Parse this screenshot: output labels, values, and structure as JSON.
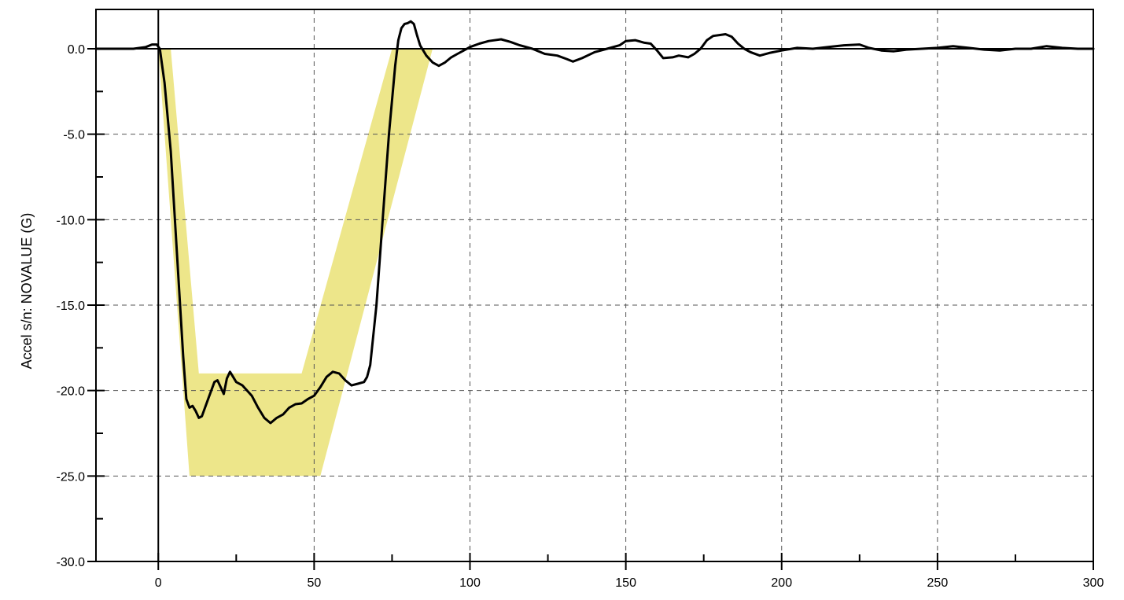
{
  "chart_data": {
    "type": "line",
    "title": "",
    "xlabel": "",
    "ylabel": "Accel s/n: NOVALUE (G)",
    "xlim": [
      -20,
      300
    ],
    "ylim": [
      -30,
      2.3
    ],
    "x_ticks": [
      0,
      50,
      100,
      150,
      200,
      250,
      300
    ],
    "x_tick_labels": [
      "0",
      "50",
      "100",
      "150",
      "200",
      "250",
      "300"
    ],
    "x_minor_ticks": [
      25,
      75,
      125,
      175,
      225,
      275
    ],
    "y_ticks": [
      0,
      -5,
      -10,
      -15,
      -20,
      -25,
      -30
    ],
    "y_tick_labels": [
      "0.0",
      "-5.0",
      "-10.0",
      "-15.0",
      "-20.0",
      "-25.0",
      "-30.0"
    ],
    "y_minor_ticks": [
      -2.5,
      -7.5,
      -12.5,
      -17.5,
      -22.5,
      -27.5
    ],
    "grid": true,
    "legend": "none",
    "corridor": {
      "color": "#EDE68A",
      "polygon": [
        [
          0,
          0
        ],
        [
          4,
          0
        ],
        [
          13,
          -19
        ],
        [
          46,
          -19
        ],
        [
          75,
          0
        ],
        [
          88,
          0
        ],
        [
          52,
          -25
        ],
        [
          10,
          -25
        ]
      ]
    },
    "series": [
      {
        "color": "#000000",
        "points": [
          [
            -20,
            0
          ],
          [
            -8,
            0
          ],
          [
            -4,
            0.1
          ],
          [
            -2,
            0.25
          ],
          [
            -0.5,
            0.25
          ],
          [
            0.5,
            0
          ],
          [
            2,
            -2
          ],
          [
            4,
            -6
          ],
          [
            6,
            -12
          ],
          [
            8,
            -18
          ],
          [
            9,
            -20.5
          ],
          [
            10,
            -21
          ],
          [
            11,
            -20.9
          ],
          [
            12,
            -21.2
          ],
          [
            13,
            -21.6
          ],
          [
            14,
            -21.5
          ],
          [
            16,
            -20.5
          ],
          [
            18,
            -19.5
          ],
          [
            19,
            -19.4
          ],
          [
            20,
            -19.8
          ],
          [
            21,
            -20.2
          ],
          [
            22,
            -19.3
          ],
          [
            23,
            -18.9
          ],
          [
            24,
            -19.2
          ],
          [
            25,
            -19.5
          ],
          [
            27,
            -19.7
          ],
          [
            30,
            -20.3
          ],
          [
            32,
            -21
          ],
          [
            34,
            -21.6
          ],
          [
            36,
            -21.9
          ],
          [
            38,
            -21.6
          ],
          [
            40,
            -21.4
          ],
          [
            42,
            -21
          ],
          [
            44,
            -20.8
          ],
          [
            46,
            -20.75
          ],
          [
            48,
            -20.5
          ],
          [
            50,
            -20.3
          ],
          [
            52,
            -19.8
          ],
          [
            54,
            -19.2
          ],
          [
            56,
            -18.9
          ],
          [
            58,
            -19
          ],
          [
            60,
            -19.4
          ],
          [
            62,
            -19.7
          ],
          [
            64,
            -19.6
          ],
          [
            66,
            -19.5
          ],
          [
            67,
            -19.2
          ],
          [
            68,
            -18.5
          ],
          [
            70,
            -15
          ],
          [
            72,
            -10
          ],
          [
            74,
            -5
          ],
          [
            76,
            -1
          ],
          [
            77,
            0.5
          ],
          [
            78,
            1.2
          ],
          [
            79,
            1.45
          ],
          [
            80,
            1.5
          ],
          [
            81,
            1.6
          ],
          [
            82,
            1.45
          ],
          [
            83,
            0.8
          ],
          [
            84,
            0.2
          ],
          [
            86,
            -0.4
          ],
          [
            88,
            -0.8
          ],
          [
            90,
            -1
          ],
          [
            92,
            -0.8
          ],
          [
            94,
            -0.5
          ],
          [
            96,
            -0.3
          ],
          [
            98,
            -0.1
          ],
          [
            100,
            0.1
          ],
          [
            103,
            0.3
          ],
          [
            106,
            0.45
          ],
          [
            110,
            0.55
          ],
          [
            113,
            0.4
          ],
          [
            116,
            0.2
          ],
          [
            120,
            0
          ],
          [
            124,
            -0.3
          ],
          [
            128,
            -0.4
          ],
          [
            131,
            -0.6
          ],
          [
            133,
            -0.75
          ],
          [
            136,
            -0.55
          ],
          [
            140,
            -0.2
          ],
          [
            144,
            0
          ],
          [
            148,
            0.2
          ],
          [
            150,
            0.45
          ],
          [
            153,
            0.5
          ],
          [
            156,
            0.35
          ],
          [
            158,
            0.3
          ],
          [
            160,
            -0.1
          ],
          [
            162,
            -0.55
          ],
          [
            165,
            -0.5
          ],
          [
            167,
            -0.4
          ],
          [
            170,
            -0.5
          ],
          [
            172,
            -0.3
          ],
          [
            174,
            0
          ],
          [
            176,
            0.5
          ],
          [
            178,
            0.75
          ],
          [
            180,
            0.8
          ],
          [
            182,
            0.85
          ],
          [
            184,
            0.7
          ],
          [
            186,
            0.3
          ],
          [
            188,
            0
          ],
          [
            190,
            -0.2
          ],
          [
            193,
            -0.4
          ],
          [
            196,
            -0.25
          ],
          [
            200,
            -0.1
          ],
          [
            205,
            0.05
          ],
          [
            210,
            0
          ],
          [
            215,
            0.1
          ],
          [
            220,
            0.2
          ],
          [
            225,
            0.25
          ],
          [
            228,
            0.05
          ],
          [
            232,
            -0.1
          ],
          [
            236,
            -0.15
          ],
          [
            240,
            -0.05
          ],
          [
            245,
            0
          ],
          [
            250,
            0.05
          ],
          [
            255,
            0.15
          ],
          [
            260,
            0.05
          ],
          [
            265,
            -0.05
          ],
          [
            270,
            -0.1
          ],
          [
            275,
            0
          ],
          [
            280,
            0
          ],
          [
            285,
            0.15
          ],
          [
            290,
            0.05
          ],
          [
            295,
            0
          ],
          [
            300,
            0
          ]
        ]
      }
    ]
  }
}
